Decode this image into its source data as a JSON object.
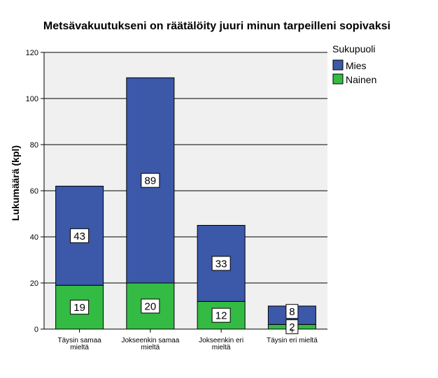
{
  "chart_data": {
    "type": "bar",
    "stacked": true,
    "title": "Metsävakuutukseni on räätälöity juuri minun tarpeilleni sopivaksi",
    "xlabel": "",
    "ylabel": "Lukumäärä (kpl)",
    "ylim": [
      0,
      120
    ],
    "yticks": [
      0,
      20,
      40,
      60,
      80,
      100,
      120
    ],
    "grid": true,
    "legend_title": "Sukupuoli",
    "legend_position": "top-right",
    "categories": [
      [
        "Täysin samaa",
        "mieltä"
      ],
      [
        "Jokseenkin samaa",
        "mieltä"
      ],
      [
        "Jokseenkin eri",
        "mieltä"
      ],
      [
        "Täysin eri mieltä"
      ]
    ],
    "series": [
      {
        "name": "Nainen",
        "color": "#33bb44",
        "values": [
          19,
          20,
          12,
          2
        ]
      },
      {
        "name": "Mies",
        "color": "#3c58a8",
        "values": [
          43,
          89,
          33,
          8
        ]
      }
    ],
    "legend_order": [
      "Mies",
      "Nainen"
    ]
  }
}
